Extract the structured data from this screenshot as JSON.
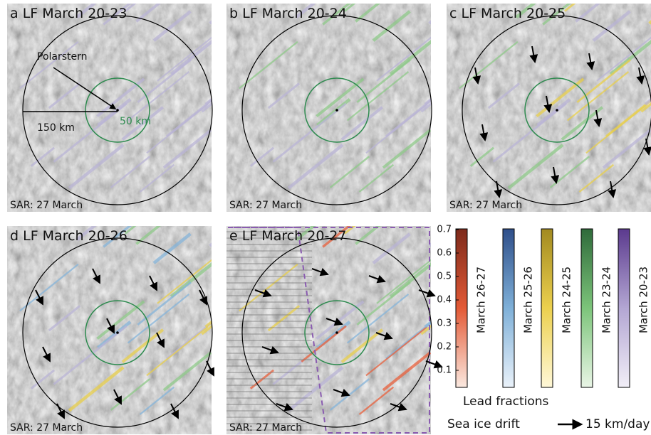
{
  "panels": [
    {
      "label": "a",
      "title": "LF March 20-23",
      "sar": "SAR: 27 March"
    },
    {
      "label": "b",
      "title": "LF March 20-24",
      "sar": "SAR: 27 March"
    },
    {
      "label": "c",
      "title": "LF March 20-25",
      "sar": "SAR: 27 March"
    },
    {
      "label": "d",
      "title": "LF March 20-26",
      "sar": "SAR: 27 March"
    },
    {
      "label": "e",
      "title": "LF March 20-27",
      "sar": "SAR: 27 March"
    }
  ],
  "annotations": {
    "polarstern": "Polarstern",
    "radius_outer": "150 km",
    "radius_inner": "50 km"
  },
  "legend": {
    "colorbars": [
      "March 26-27",
      "March 25-26",
      "March 24-25",
      "March 23-24",
      "March 20-23"
    ],
    "ticks": [
      0.1,
      0.2,
      0.3,
      0.4,
      0.5,
      0.6,
      0.7
    ],
    "title": "Lead fractions",
    "drift_label": "Sea ice drift",
    "drift_scale": "15 km/day"
  }
}
